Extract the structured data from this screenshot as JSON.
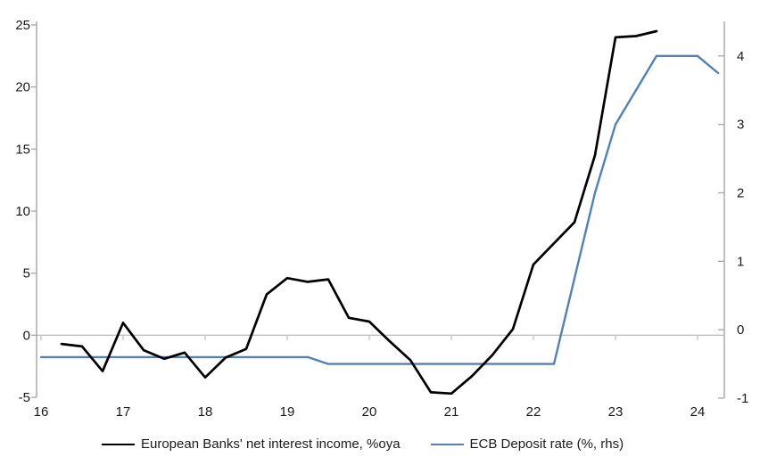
{
  "page": {
    "background": "#ffffff",
    "title": ""
  },
  "chart_data": {
    "type": "line",
    "title": "",
    "xlabel": "",
    "ylabel_left": "",
    "ylabel_right": "",
    "grid": "zero-line-only",
    "legend_position": "bottom",
    "x_axis": {
      "tick_labels": [
        "16",
        "17",
        "18",
        "19",
        "20",
        "21",
        "22",
        "23",
        "24"
      ],
      "tick_values": [
        16,
        17,
        18,
        19,
        20,
        21,
        22,
        23,
        24
      ],
      "range": [
        16,
        24.33
      ]
    },
    "left_axis": {
      "tick_labels": [
        "25",
        "20",
        "15",
        "10",
        "5",
        "0",
        "-5"
      ],
      "tick_values": [
        25,
        20,
        15,
        10,
        5,
        0,
        -5
      ],
      "range": [
        -5,
        25
      ]
    },
    "right_axis": {
      "tick_labels": [
        "4",
        "3",
        "2",
        "1",
        "0",
        "-1"
      ],
      "tick_values": [
        4,
        3,
        2,
        1,
        0,
        -1
      ],
      "range": [
        -1,
        4.5
      ]
    },
    "series": [
      {
        "name": "European Banks' net interest income, %oya",
        "color": "#000000",
        "axis": "left",
        "line_width": 2.7,
        "x": [
          16.25,
          16.5,
          16.75,
          17,
          17.25,
          17.5,
          17.75,
          18,
          18.25,
          18.5,
          18.75,
          19,
          19.25,
          19.5,
          19.75,
          20,
          20.25,
          20.5,
          20.75,
          21,
          21.25,
          21.5,
          21.75,
          22,
          22.25,
          22.5,
          22.75,
          23,
          23.25,
          23.5
        ],
        "values": [
          -0.7,
          -0.9,
          -2.9,
          1.0,
          -1.2,
          -1.9,
          -1.4,
          -3.4,
          -1.8,
          -1.1,
          3.3,
          4.6,
          4.3,
          4.5,
          1.4,
          1.1,
          -0.5,
          -2.0,
          -4.6,
          -4.7,
          -3.3,
          -1.6,
          0.5,
          5.7,
          7.4,
          9.1,
          14.5,
          24.0,
          24.1,
          24.5
        ]
      },
      {
        "name": "ECB Deposit rate (%, rhs)",
        "color": "#4F81BD",
        "axis": "right",
        "line_width": 2.4,
        "x": [
          16,
          16.25,
          16.5,
          16.75,
          17,
          17.25,
          17.5,
          17.75,
          18,
          18.25,
          18.5,
          18.75,
          19,
          19.25,
          19.5,
          19.75,
          20,
          20.25,
          20.5,
          20.75,
          21,
          21.25,
          21.5,
          21.75,
          22,
          22.25,
          22.5,
          22.75,
          23,
          23.25,
          23.5,
          23.75,
          24,
          24.25
        ],
        "values": [
          -0.4,
          -0.4,
          -0.4,
          -0.4,
          -0.4,
          -0.4,
          -0.4,
          -0.4,
          -0.4,
          -0.4,
          -0.4,
          -0.4,
          -0.4,
          -0.4,
          -0.5,
          -0.5,
          -0.5,
          -0.5,
          -0.5,
          -0.5,
          -0.5,
          -0.5,
          -0.5,
          -0.5,
          -0.5,
          -0.5,
          0.75,
          2.0,
          3.0,
          3.5,
          4.0,
          4.0,
          4.0,
          3.75
        ]
      }
    ],
    "colors": {
      "axis_line": "#A6A6A6",
      "zero_line": "#C0C0C0",
      "tick_label": "#1A1A1A"
    }
  }
}
